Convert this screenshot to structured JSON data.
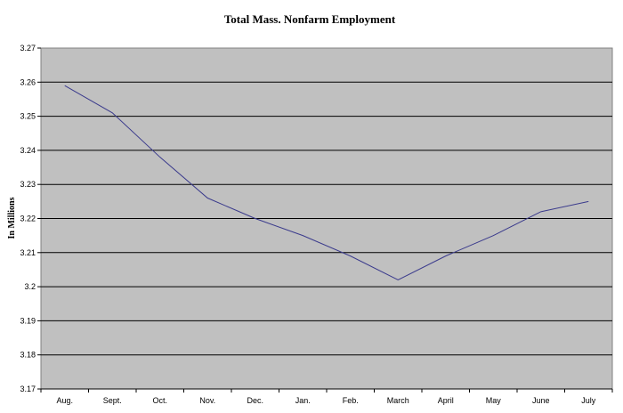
{
  "chart_data": {
    "type": "line",
    "title": "Total Mass. Nonfarm Employment",
    "xlabel": "",
    "ylabel": "In Millions",
    "categories": [
      "Aug.",
      "Sept.",
      "Oct.",
      "Nov.",
      "Dec.",
      "Jan.",
      "Feb.",
      "March",
      "April",
      "May",
      "June",
      "July"
    ],
    "series": [
      {
        "values": [
          3.259,
          3.251,
          3.238,
          3.226,
          3.22,
          3.215,
          3.209,
          3.202,
          3.209,
          3.215,
          3.222,
          3.225
        ]
      }
    ],
    "ylim": [
      3.17,
      3.27
    ],
    "yticks": [
      "3.17",
      "3.18",
      "3.19",
      "3.2",
      "3.21",
      "3.22",
      "3.23",
      "3.24",
      "3.25",
      "3.26",
      "3.27"
    ],
    "grid": true,
    "legend": "none",
    "colors": {
      "plot_background": "#c0c0c0",
      "gridline": "#000000",
      "line": "#3a3a8c"
    }
  }
}
